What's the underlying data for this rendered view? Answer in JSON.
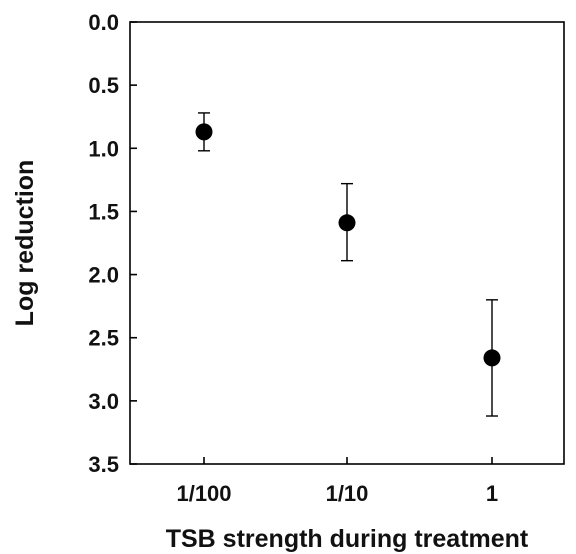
{
  "chart_data": {
    "type": "scatter",
    "title": "",
    "xlabel": "TSB strength during treatment",
    "ylabel": "Log reduction",
    "categories": [
      "1/100",
      "1/10",
      "1"
    ],
    "values": [
      0.87,
      1.59,
      2.66
    ],
    "error_bars": [
      {
        "lower": 0.72,
        "upper": 1.02
      },
      {
        "lower": 1.28,
        "upper": 1.89
      },
      {
        "lower": 2.2,
        "upper": 3.12
      }
    ],
    "ylim": [
      0.0,
      3.5
    ],
    "y_axis_inverted": true,
    "yticks": [
      "0.0",
      "0.5",
      "1.0",
      "1.5",
      "2.0",
      "2.5",
      "3.0",
      "3.5"
    ],
    "grid": false,
    "legend": "none",
    "marker_color": "#000000"
  }
}
